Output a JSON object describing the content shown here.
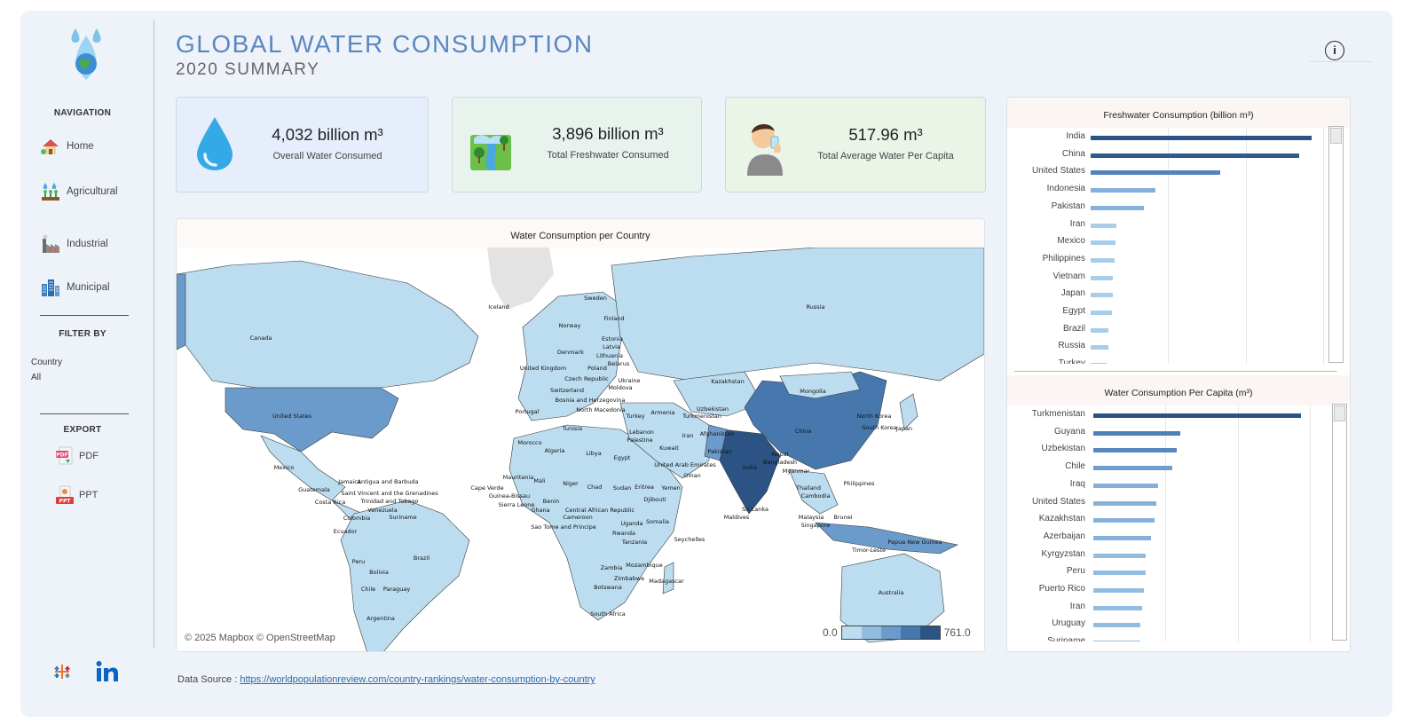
{
  "header": {
    "title": "GLOBAL WATER CONSUMPTION",
    "subtitle": "2020 SUMMARY",
    "info_label": "i"
  },
  "sidebar": {
    "navigation_heading": "NAVIGATION",
    "nav_items": [
      {
        "label": "Home",
        "icon": "home-icon"
      },
      {
        "label": "Agricultural",
        "icon": "agriculture-icon"
      },
      {
        "label": "Industrial",
        "icon": "factory-icon"
      },
      {
        "label": "Municipal",
        "icon": "city-icon"
      }
    ],
    "filter_heading": "FILTER BY",
    "filter_label": "Country",
    "filter_value": "All",
    "export_heading": "EXPORT",
    "export_items": [
      {
        "label": "PDF",
        "icon": "pdf-icon"
      },
      {
        "label": "PPT",
        "icon": "ppt-icon"
      }
    ]
  },
  "kpis": [
    {
      "value": "4,032  billion m³",
      "label": "Overall Water Consumed",
      "icon": "water-drop-icon",
      "bg": "#e6eefb"
    },
    {
      "value": "3,896 billion m³",
      "label": "Total  Freshwater Consumed",
      "icon": "freshwater-icon",
      "bg": "#e8f3ee"
    },
    {
      "value": "517.96 m³",
      "label": "Total Average Water Per Capita",
      "icon": "person-drinking-icon",
      "bg": "#eaf4e7"
    }
  ],
  "map": {
    "title": "Water Consumption per Country",
    "attribution": "© 2025 Mapbox © OpenStreetMap",
    "legend_min": "0.0",
    "legend_max": "761.0",
    "legend_colors": [
      "#bcdcf0",
      "#93bde0",
      "#6b9bcb",
      "#4678ad",
      "#2b5384"
    ],
    "country_labels": [
      "Canada",
      "United States",
      "Mexico",
      "Guatemala",
      "Jamaica",
      "Antigua and Barbuda",
      "Saint Vincent and the Grenadines",
      "Trinidad and Tobago",
      "Costa Rica",
      "Venezuela",
      "Colombia",
      "Suriname",
      "Ecuador",
      "Peru",
      "Brazil",
      "Bolivia",
      "Chile",
      "Paraguay",
      "Argentina",
      "Iceland",
      "Sweden",
      "Finland",
      "Norway",
      "Estonia",
      "Latvia",
      "Lithuania",
      "Denmark",
      "United Kingdom",
      "Poland",
      "Belarus",
      "Czech Republic",
      "Ukraine",
      "Switzerland",
      "Moldova",
      "Bosnia and Herzegovina",
      "North Macedonia",
      "Portugal",
      "Turkey",
      "Armenia",
      "Tunisia",
      "Morocco",
      "Algeria",
      "Libya",
      "Egypt",
      "Lebanon",
      "Palestine",
      "Kuwait",
      "Iran",
      "Afghanistan",
      "Uzbekistan",
      "Turkmenistan",
      "Pakistan",
      "Kazakhstan",
      "Russia",
      "Mongolia",
      "China",
      "North Korea",
      "South Korea",
      "Japan",
      "India",
      "Nepal",
      "Bangladesh",
      "Myanmar",
      "Thailand",
      "Cambodia",
      "Philippines",
      "Malaysia",
      "Singapore",
      "Brunei",
      "Sri Lanka",
      "Maldives",
      "Oman",
      "United Arab Emirates",
      "Yemen",
      "Eritrea",
      "Sudan",
      "Djibouti",
      "Somalia",
      "Chad",
      "Niger",
      "Mali",
      "Mauritania",
      "Cape Verde",
      "Guinea-Bissau",
      "Sierra Leone",
      "Benin",
      "Ghana",
      "Central African Republic",
      "Cameroon",
      "Sao Tome and Principe",
      "Uganda",
      "Rwanda",
      "Tanzania",
      "Seychelles",
      "Zambia",
      "Mozambique",
      "Zimbabwe",
      "Madagascar",
      "Botswana",
      "South Africa",
      "Papua New Guinea",
      "Timor-Leste",
      "Australia"
    ]
  },
  "freshwater_chart": {
    "title": "Freshwater Consumption (billion m³)",
    "type": "bar",
    "categories": [
      "India",
      "China",
      "United States",
      "Indonesia",
      "Pakistan",
      "Iran",
      "Mexico",
      "Philippines",
      "Vietnam",
      "Japan",
      "Egypt",
      "Brazil",
      "Russia",
      "Turkey"
    ],
    "values": [
      761,
      717,
      445,
      222,
      183,
      89,
      87,
      83,
      77,
      75,
      74,
      62,
      61,
      56
    ],
    "xlim": [
      0,
      800
    ],
    "orientation": "horizontal",
    "colors": [
      "#2b5384",
      "#2f5a8d",
      "#5383b8",
      "#84b1da",
      "#84b1da",
      "#a7cde8",
      "#a7cde8",
      "#a7cde8",
      "#a7cde8",
      "#a7cde8",
      "#a7cde8",
      "#a7cde8",
      "#a7cde8",
      "#a7cde8"
    ]
  },
  "per_capita_chart": {
    "title": "Water Consumption Per Capita  (m³)",
    "type": "bar",
    "categories": [
      "Turkmenistan",
      "Guyana",
      "Uzbekistan",
      "Chile",
      "Iraq",
      "United States",
      "Kazakhstan",
      "Azerbaijan",
      "Kyrgyzstan",
      "Peru",
      "Puerto Rico",
      "Iran",
      "Uruguay",
      "Suriname"
    ],
    "values": [
      5753,
      2400,
      2300,
      2200,
      1800,
      1750,
      1700,
      1600,
      1450,
      1450,
      1400,
      1350,
      1300,
      1300
    ],
    "xlim": [
      0,
      6000
    ],
    "orientation": "horizontal",
    "colors": [
      "#2b5384",
      "#4e7fb6",
      "#5787bc",
      "#6f9dcf",
      "#84b1da",
      "#84b1da",
      "#84b1da",
      "#84b1da",
      "#93bde0",
      "#93bde0",
      "#93bde0",
      "#93bde0",
      "#93bde0",
      "#93bde0"
    ]
  },
  "footer": {
    "data_source_label": "Data Source : ",
    "data_source_link": "https://worldpopulationreview.com/country-rankings/water-consumption-by-country"
  }
}
